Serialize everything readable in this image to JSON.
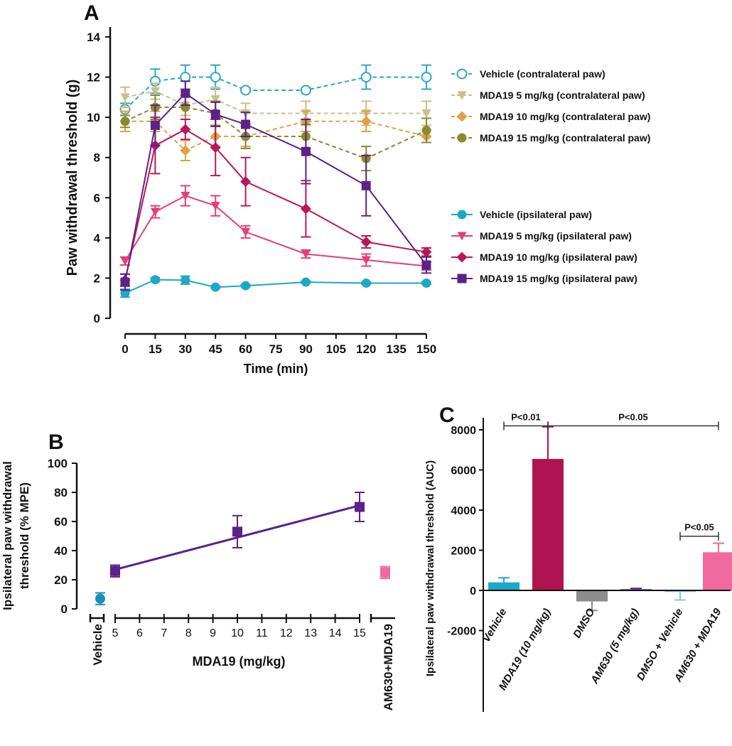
{
  "panel_labels": {
    "a": "A",
    "b": "B",
    "c": "C"
  },
  "chart_data": [
    {
      "id": "A",
      "type": "line",
      "xlabel": "Time (min)",
      "ylabel": "Paw withdrawal threshold (g)",
      "xlim": [
        0,
        150
      ],
      "ylim": [
        0,
        14
      ],
      "xticks": [
        "0",
        "15",
        "30",
        "45",
        "60",
        "75",
        "90",
        "105",
        "120",
        "135",
        "150"
      ],
      "yticks": [
        "0",
        "2",
        "4",
        "6",
        "8",
        "10",
        "12",
        "14"
      ],
      "x": [
        0,
        15,
        30,
        45,
        60,
        90,
        120,
        150
      ],
      "series": [
        {
          "name": "Vehicle (contralateral paw)",
          "color": "#2aa7c9",
          "marker": "circle-open",
          "dash": true,
          "values": [
            10.4,
            11.8,
            12.0,
            12.0,
            11.35,
            11.35,
            12.0,
            12.0
          ],
          "err": [
            0.3,
            0.6,
            0.6,
            0.6,
            0.1,
            0.1,
            0.6,
            0.6
          ]
        },
        {
          "name": "MDA19 5 mg/kg (contralateral paw)",
          "color": "#c9bf8a",
          "marker": "triangle-down",
          "dash": true,
          "values": [
            11.0,
            11.3,
            10.6,
            10.9,
            10.2,
            10.2,
            10.2,
            10.2
          ],
          "err": [
            0.5,
            0.4,
            0.5,
            0.6,
            0.5,
            0.6,
            0.6,
            0.6
          ]
        },
        {
          "name": "MDA19 10 mg/kg (contralateral paw)",
          "color": "#e0a045",
          "marker": "diamond",
          "dash": true,
          "values": [
            9.8,
            9.8,
            8.35,
            9.05,
            9.05,
            9.8,
            9.8,
            9.05
          ],
          "err": [
            0.5,
            0.5,
            0.5,
            0.5,
            0.5,
            0.5,
            0.5,
            0.3
          ]
        },
        {
          "name": "MDA19 15 mg/kg (contralateral paw)",
          "color": "#8a8a2e",
          "marker": "circle",
          "dash": true,
          "values": [
            9.8,
            10.5,
            10.5,
            10.2,
            9.05,
            9.05,
            7.95,
            9.35
          ],
          "err": [
            0.3,
            0.6,
            0.6,
            0.6,
            0.6,
            0.6,
            0.6,
            0.6
          ]
        },
        {
          "name": "Vehicle (ipsilateral paw)",
          "color": "#1ea7c7",
          "marker": "circle",
          "dash": false,
          "values": [
            1.25,
            1.92,
            1.9,
            1.55,
            1.62,
            1.8,
            1.75,
            1.75
          ],
          "err": [
            0.2,
            0.1,
            0.2,
            0.05,
            0.05,
            0.05,
            0.05,
            0.05
          ]
        },
        {
          "name": "MDA19 5 mg/kg (ipsilateral paw)",
          "color": "#e63d79",
          "marker": "triangle-down",
          "dash": false,
          "values": [
            2.85,
            5.3,
            6.1,
            5.6,
            4.3,
            3.2,
            2.9,
            2.6
          ],
          "err": [
            0.2,
            0.3,
            0.5,
            0.5,
            0.3,
            0.2,
            0.3,
            0.2
          ]
        },
        {
          "name": "MDA19 10 mg/kg (ipsilateral paw)",
          "color": "#b8185a",
          "marker": "diamond",
          "dash": false,
          "values": [
            1.9,
            8.6,
            9.4,
            8.5,
            6.8,
            5.45,
            3.8,
            3.3
          ],
          "err": [
            0.3,
            1.4,
            0.5,
            1.4,
            1.2,
            1.4,
            0.3,
            0.2
          ]
        },
        {
          "name": "MDA19 15 mg/kg (ipsilateral paw)",
          "color": "#5b2287",
          "marker": "square",
          "dash": false,
          "values": [
            1.8,
            9.6,
            11.2,
            10.15,
            9.65,
            8.3,
            6.6,
            2.65
          ],
          "err": [
            0.4,
            1.0,
            0.6,
            0.6,
            0.6,
            1.6,
            1.5,
            0.4
          ]
        }
      ]
    },
    {
      "id": "B",
      "type": "scatter",
      "xlabel": "MDA19 (mg/kg)",
      "ylabel_lines": [
        "Ipsilateral paw withdrawal",
        "threshold (% MPE)"
      ],
      "ylim": [
        0,
        100
      ],
      "yticks": [
        "0",
        "20",
        "40",
        "60",
        "80",
        "100"
      ],
      "xlim": [
        5,
        15
      ],
      "xticks": [
        "5",
        "6",
        "7",
        "8",
        "9",
        "10",
        "11",
        "12",
        "13",
        "14",
        "15"
      ],
      "left_category": "Vehicle",
      "right_category": "AM630+MDA19",
      "fit_line": {
        "color": "#5b2287",
        "x": [
          5,
          15
        ],
        "y": [
          27,
          71
        ]
      },
      "points": [
        {
          "label": "Vehicle",
          "group": "left",
          "value": 7,
          "err": 4,
          "color": "#1a8fb8",
          "marker": "circle"
        },
        {
          "label": "MDA19 5 mg/kg",
          "group": "mda19",
          "x": 5,
          "value": 26,
          "err": 4,
          "color": "#5b2287",
          "marker": "square"
        },
        {
          "label": "MDA19 10 mg/kg",
          "group": "mda19",
          "x": 10,
          "value": 53,
          "err": 11,
          "color": "#5b2287",
          "marker": "square"
        },
        {
          "label": "MDA19 15 mg/kg",
          "group": "mda19",
          "x": 15,
          "value": 70,
          "err": 10,
          "color": "#5b2287",
          "marker": "square"
        },
        {
          "label": "AM630+MDA19",
          "group": "right",
          "value": 25,
          "err": 4,
          "color": "#f06aa0",
          "marker": "square"
        }
      ]
    },
    {
      "id": "C",
      "type": "bar",
      "ylabel": "Ipsilateral paw withdrawal threshold (AUC)",
      "ylim": [
        -2000,
        8600
      ],
      "yticks": [
        "-2000",
        "0",
        "2000",
        "4000",
        "6000",
        "8000"
      ],
      "categories": [
        "Vehicle",
        "MDA19 (10 mg/kg)",
        "DMSO",
        "AM630 (5 mg/kg)",
        "DMSO + Vehicle",
        "AM630 + MDA19"
      ],
      "values": [
        400,
        6550,
        -550,
        60,
        -80,
        1900
      ],
      "errors": [
        230,
        1600,
        450,
        40,
        400,
        450
      ],
      "colors": [
        "#1ea7c7",
        "#b01450",
        "#8c8c8c",
        "#5b2287",
        "#7fc7e0",
        "#f06aa0"
      ],
      "annotations": [
        {
          "text": "P<0.01",
          "from": 0,
          "to": 1,
          "level": 8200
        },
        {
          "text": "P<0.05",
          "from": 1,
          "to": 5,
          "level": 8200
        },
        {
          "text": "P<0.05",
          "from": 4,
          "to": 5,
          "level": 2700
        }
      ]
    }
  ]
}
